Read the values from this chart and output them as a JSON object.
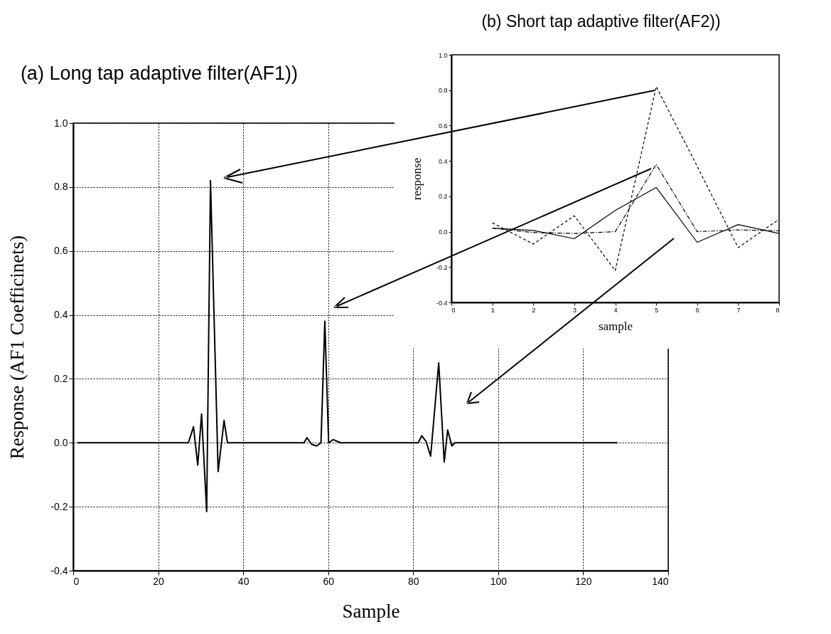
{
  "chart_data": [
    {
      "type": "line",
      "title": "(a) Long tap adaptive filter(AF1))",
      "xlabel": "Sample",
      "ylabel": "Response (AF1 Coefficinets)",
      "xlim": [
        0,
        140
      ],
      "ylim": [
        -0.4,
        1.0
      ],
      "xticks": [
        0,
        20,
        40,
        60,
        80,
        100,
        120,
        140
      ],
      "yticks": [
        {
          "value": -0.4,
          "label": "-0.4"
        },
        {
          "value": -0.2,
          "label": "-0.2"
        },
        {
          "value": 0,
          "label": "0.0"
        },
        {
          "value": 0.2,
          "label": "0.2"
        },
        {
          "value": 0.4,
          "label": "0.4"
        },
        {
          "value": 0.6,
          "label": "0.6"
        },
        {
          "value": 0.8,
          "label": "0.8"
        },
        {
          "value": 1.0,
          "label": "1.0"
        }
      ],
      "grid": true,
      "line_style": "solid",
      "series": [
        {
          "color": "#000000",
          "x": [
            1,
            27.1,
            28.3,
            29.3,
            30.2,
            31.4,
            32.3,
            34.1,
            35.5,
            36.3,
            54.3,
            55.0,
            56.1,
            57.3,
            58.3,
            59.2,
            60.1,
            61.2,
            62.9,
            81.2,
            82.0,
            83.0,
            84.1,
            86.0,
            87.3,
            88.1,
            89.1,
            89.8,
            128
          ],
          "values": [
            0,
            0,
            0.05,
            -0.07,
            0.09,
            -0.215,
            0.82,
            -0.09,
            0.07,
            0,
            0,
            0.016,
            -0.005,
            -0.01,
            0,
            0.38,
            0,
            0.01,
            0,
            0,
            0.022,
            0.005,
            -0.042,
            0.25,
            -0.06,
            0.04,
            -0.01,
            0,
            0
          ]
        }
      ]
    },
    {
      "type": "line",
      "title": "(b) Short tap adaptive filter(AF2))",
      "xlabel": "sample",
      "ylabel": "response",
      "xlim": [
        0,
        8
      ],
      "ylim": [
        -0.4,
        1.0
      ],
      "xticks": [
        0,
        1,
        2,
        3,
        4,
        5,
        6,
        7,
        8
      ],
      "yticks": [
        {
          "value": -0.4,
          "label": "-0.4"
        },
        {
          "value": -0.2,
          "label": "-0.2"
        },
        {
          "value": 0,
          "label": "0.0"
        },
        {
          "value": 0.2,
          "label": "0.2"
        },
        {
          "value": 0.4,
          "label": "0.4"
        },
        {
          "value": 0.6,
          "label": "0.6"
        },
        {
          "value": 0.8,
          "label": "0.8"
        },
        {
          "value": 1.0,
          "label": "1.0"
        }
      ],
      "grid": false,
      "series": [
        {
          "color": "#000000",
          "line_style": "solid",
          "x": [
            1,
            2,
            3,
            4,
            5,
            6,
            7,
            8
          ],
          "values": [
            0.02,
            0.007,
            -0.04,
            0.12,
            0.25,
            -0.06,
            0.04,
            -0.01
          ]
        },
        {
          "color": "#000000",
          "line_style": "dashed",
          "x": [
            1,
            2,
            3,
            4,
            5,
            6,
            7,
            8
          ],
          "values": [
            0.05,
            -0.07,
            0.09,
            -0.22,
            0.82,
            0.37,
            -0.09,
            0.07
          ]
        },
        {
          "color": "#000000",
          "line_style": "dotted",
          "x": [
            1,
            2,
            3,
            4,
            5,
            6,
            7,
            8
          ],
          "values": [
            0.02,
            -0.005,
            -0.01,
            0,
            0.38,
            0,
            0.01,
            0.005
          ]
        }
      ]
    }
  ]
}
